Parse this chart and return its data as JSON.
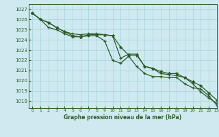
{
  "title": "Graphe pression niveau de la mer (hPa)",
  "bg_color": "#cfe9f0",
  "grid_color": "#b0d8e0",
  "line_color": "#2d5a27",
  "xlim": [
    -0.5,
    23
  ],
  "ylim": [
    1017.3,
    1027.5
  ],
  "yticks": [
    1018,
    1019,
    1020,
    1021,
    1022,
    1023,
    1024,
    1025,
    1026,
    1027
  ],
  "xticks": [
    0,
    1,
    2,
    3,
    4,
    5,
    6,
    7,
    8,
    9,
    10,
    11,
    12,
    13,
    14,
    15,
    16,
    17,
    18,
    19,
    20,
    21,
    22,
    23
  ],
  "series1_x": [
    0,
    1,
    2,
    3,
    4,
    5,
    6,
    7,
    8,
    9,
    10,
    11,
    12,
    13,
    14,
    15,
    16,
    17,
    18,
    19,
    20,
    21,
    22,
    23
  ],
  "series1": [
    1026.6,
    1026.0,
    1025.7,
    1025.2,
    1024.8,
    1024.6,
    1024.5,
    1024.6,
    1024.6,
    1024.5,
    1024.4,
    1022.2,
    1022.6,
    1022.6,
    1021.4,
    1021.2,
    1020.7,
    1020.6,
    1020.5,
    1020.3,
    1019.7,
    1018.9,
    1018.3,
    1017.8
  ],
  "series2_x": [
    0,
    1,
    2,
    3,
    4,
    5,
    6,
    7,
    8,
    9,
    10,
    11,
    12,
    13,
    14,
    15,
    16,
    17,
    18,
    19,
    20,
    21,
    22,
    23
  ],
  "series2": [
    1026.6,
    1026.0,
    1025.7,
    1025.2,
    1024.8,
    1024.4,
    1024.3,
    1024.5,
    1024.5,
    1024.5,
    1024.4,
    1023.3,
    1022.5,
    1022.5,
    1021.4,
    1021.2,
    1020.9,
    1020.7,
    1020.7,
    1020.3,
    1019.9,
    1019.5,
    1018.8,
    1018.1
  ],
  "series3_x": [
    0,
    1,
    2,
    3,
    4,
    5,
    6,
    7,
    8,
    9,
    10,
    11,
    12,
    13,
    14,
    15,
    16,
    17,
    18,
    19,
    20,
    21,
    22,
    23
  ],
  "series3": [
    1026.6,
    1026.0,
    1025.2,
    1025.0,
    1024.6,
    1024.3,
    1024.3,
    1024.4,
    1024.4,
    1023.9,
    1022.0,
    1021.7,
    1022.4,
    1021.4,
    1020.7,
    1020.4,
    1020.4,
    1020.3,
    1020.3,
    1019.7,
    1019.3,
    1019.2,
    1018.5,
    1017.6
  ]
}
